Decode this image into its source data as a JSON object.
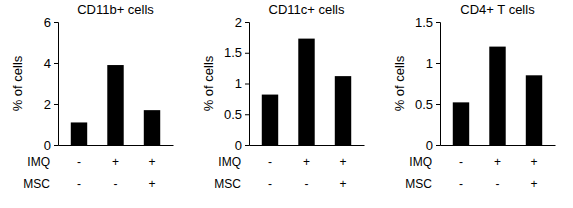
{
  "chart_data": [
    {
      "type": "bar",
      "title": "CD11b+ cells",
      "y_label": "% of cells",
      "categories": [
        null,
        null,
        null
      ],
      "values": [
        1.1,
        3.9,
        1.7
      ],
      "color": "#000000",
      "ylim": [
        0,
        6
      ],
      "yticks": [
        0,
        2,
        4,
        6
      ],
      "x_table": [
        {
          "label": "IMQ",
          "values": [
            "-",
            "+",
            "+"
          ]
        },
        {
          "label": "MSC",
          "values": [
            "-",
            "-",
            "+"
          ]
        }
      ]
    },
    {
      "type": "bar",
      "title": "CD11c+ cells",
      "y_label": "% of cells",
      "categories": [
        null,
        null,
        null
      ],
      "values": [
        0.82,
        1.73,
        1.12
      ],
      "color": "#000000",
      "ylim": [
        0,
        2
      ],
      "yticks": [
        0,
        0.5,
        1,
        1.5,
        2
      ],
      "x_table": [
        {
          "label": "IMQ",
          "values": [
            "-",
            "+",
            "+"
          ]
        },
        {
          "label": "MSC",
          "values": [
            "-",
            "-",
            "+"
          ]
        }
      ]
    },
    {
      "type": "bar",
      "title": "CD4+ T cells",
      "y_label": "% of cells",
      "categories": [
        null,
        null,
        null
      ],
      "values": [
        0.52,
        1.2,
        0.85
      ],
      "color": "#000000",
      "ylim": [
        0,
        1.5
      ],
      "yticks": [
        0,
        0.5,
        1,
        1.5
      ],
      "x_table": [
        {
          "label": "IMQ",
          "values": [
            "-",
            "+",
            "+"
          ]
        },
        {
          "label": "MSC",
          "values": [
            "-",
            "-",
            "+"
          ]
        }
      ]
    }
  ]
}
